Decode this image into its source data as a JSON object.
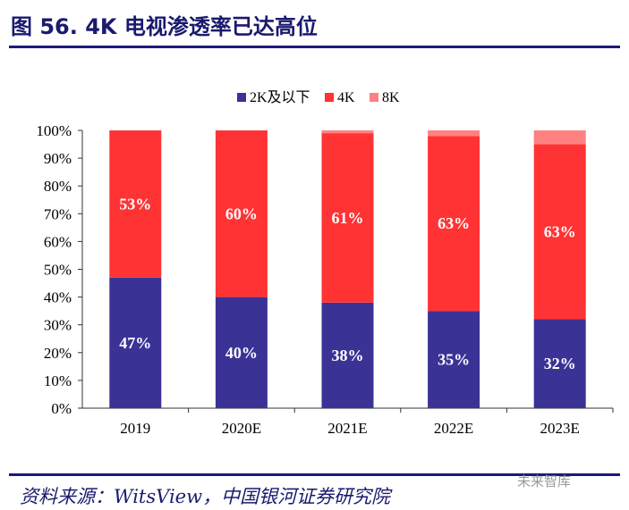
{
  "title": "图 56. 4K 电视渗透率已达高位",
  "source": "资料来源：WitsView，中国银河证券研究院",
  "watermark": "未来智库",
  "chart_data": {
    "type": "bar",
    "stacked": true,
    "categories": [
      "2019",
      "2020E",
      "2021E",
      "2022E",
      "2023E"
    ],
    "series": [
      {
        "name": "2K及以下",
        "values": [
          47,
          40,
          38,
          35,
          32
        ],
        "color": "#3b3296",
        "labels": [
          "47%",
          "40%",
          "38%",
          "35%",
          "32%"
        ]
      },
      {
        "name": "4K",
        "values": [
          53,
          60,
          61,
          63,
          63
        ],
        "color": "#ff3333",
        "labels": [
          "53%",
          "60%",
          "61%",
          "63%",
          "63%"
        ]
      },
      {
        "name": "8K",
        "values": [
          0,
          0,
          1,
          2,
          5
        ],
        "color": "#ff8080"
      }
    ],
    "ylim": [
      0,
      100
    ],
    "yticks": [
      "0%",
      "10%",
      "20%",
      "30%",
      "40%",
      "50%",
      "60%",
      "70%",
      "80%",
      "90%",
      "100%"
    ],
    "legend": "top",
    "grid": false
  }
}
